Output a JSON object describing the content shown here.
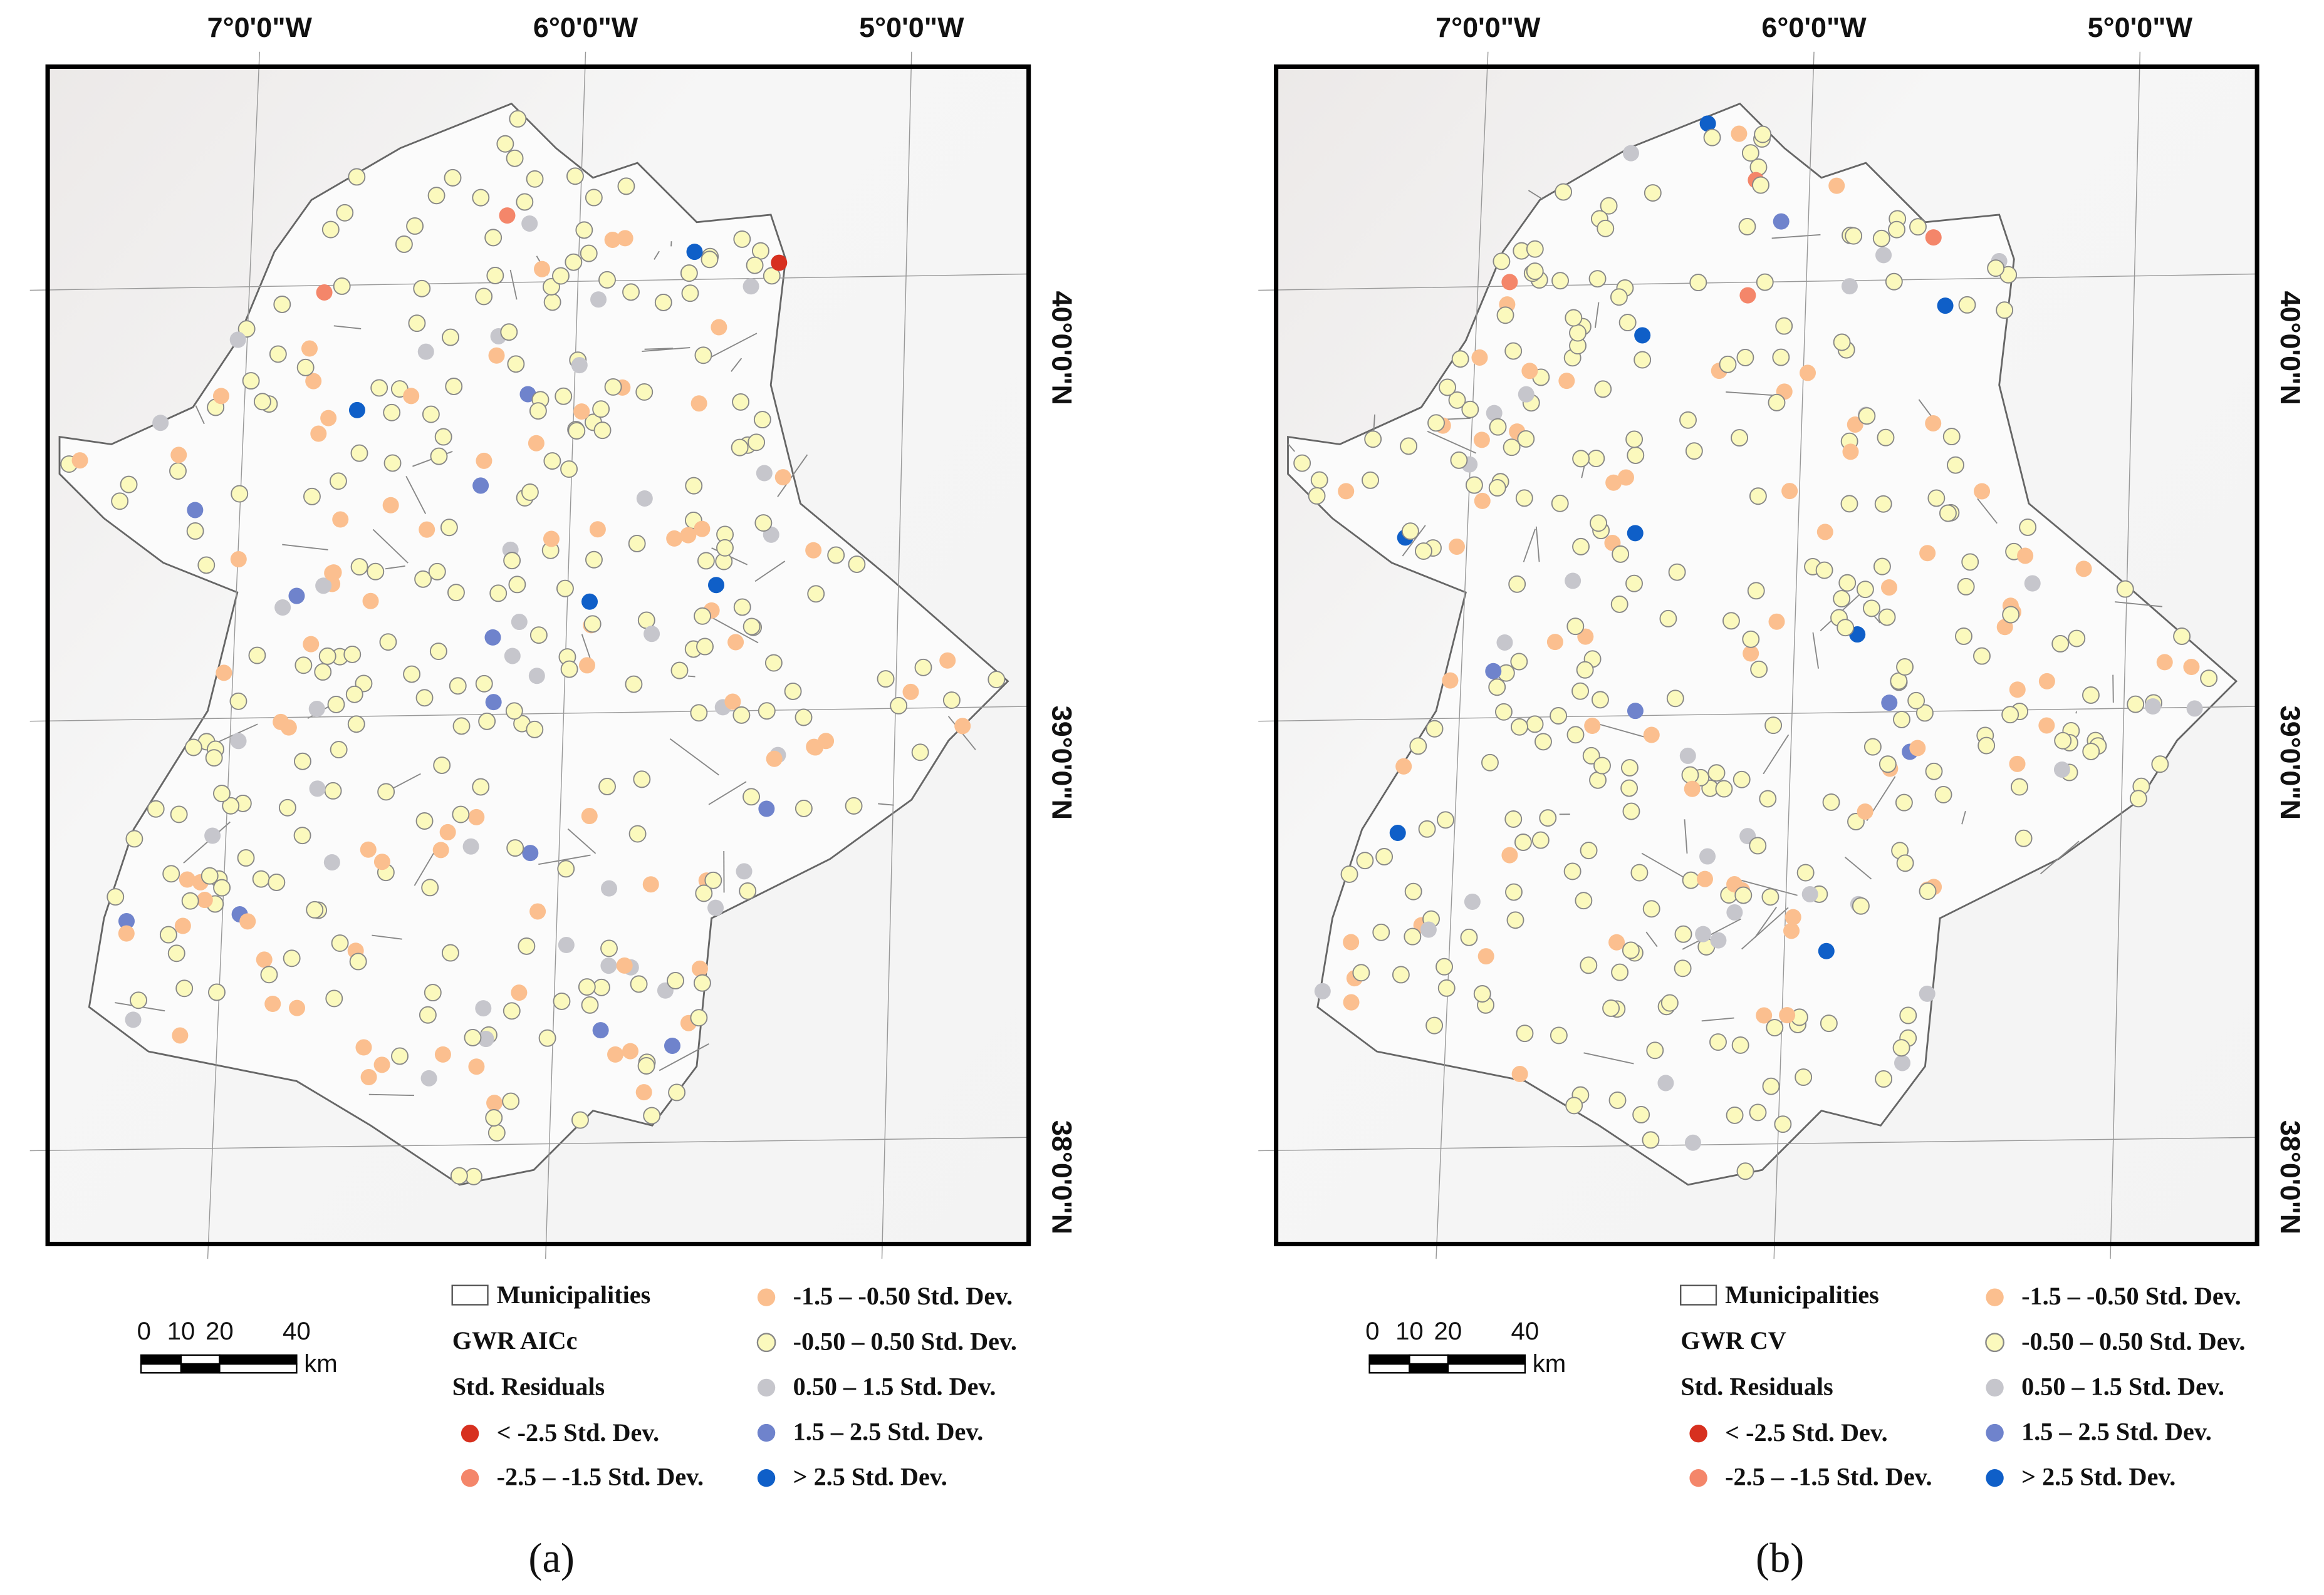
{
  "panels": [
    {
      "caption": "(a)",
      "legend": {
        "layer": "Municipalities",
        "title": [
          "GWR AICc",
          "Std. Residuals"
        ]
      }
    },
    {
      "caption": "(b)",
      "legend": {
        "layer": "Municipalities",
        "title": [
          "GWR CV",
          "Std. Residuals"
        ]
      }
    }
  ],
  "classes": [
    {
      "label": "< -2.5 Std. Dev.",
      "color": "#d7301f"
    },
    {
      "label": "-2.5 – -1.5 Std. Dev.",
      "color": "#f4866a"
    },
    {
      "label": "-1.5 – -0.50 Std. Dev.",
      "color": "#fbbf8f"
    },
    {
      "label": "-0.50 – 0.50 Std. Dev.",
      "color": "#fbf9bd"
    },
    {
      "label": "0.50 – 1.5 Std. Dev.",
      "color": "#c6c6cc"
    },
    {
      "label": "1.5 – 2.5 Std. Dev.",
      "color": "#6f83cc"
    },
    {
      "label": "> 2.5 Std. Dev.",
      "color": "#0f5fc8"
    }
  ],
  "longitudes": [
    "7°0'0\"W",
    "6°0'0\"W",
    "5°0'0\"W"
  ],
  "latitudes": [
    "40°0'0\"N",
    "39°0'0\"N",
    "38°0'0\"N"
  ],
  "scale_bar": {
    "ticks": [
      "0",
      "10",
      "20",
      "40"
    ],
    "unit": "km"
  }
}
